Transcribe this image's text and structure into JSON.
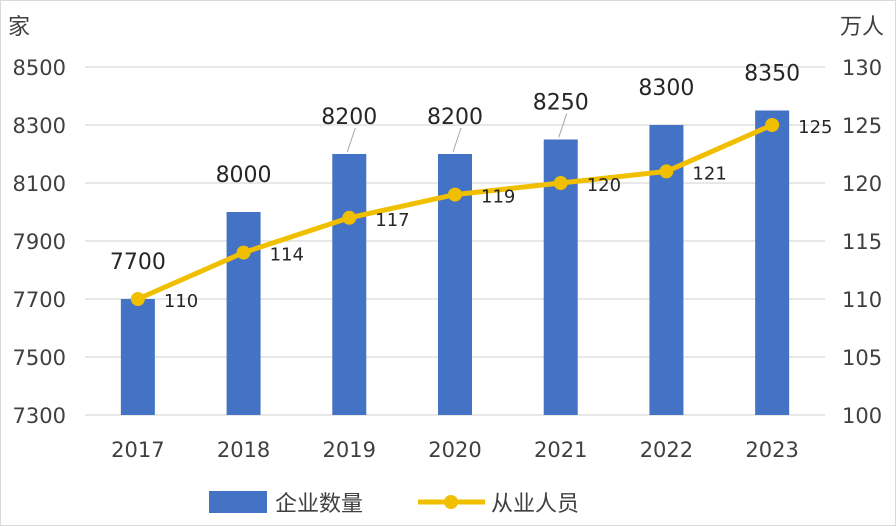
{
  "chart_data": {
    "type": "bar+line",
    "categories": [
      "2017",
      "2018",
      "2019",
      "2020",
      "2021",
      "2022",
      "2023"
    ],
    "series": [
      {
        "name": "企业数量",
        "type": "bar",
        "axis": "left",
        "values": [
          7700,
          8000,
          8200,
          8200,
          8250,
          8300,
          8350
        ],
        "labels": [
          "7700",
          "8000",
          "8200",
          "8200",
          "8250",
          "8300",
          "8350"
        ],
        "color": "#4472c4"
      },
      {
        "name": "从业人员",
        "type": "line",
        "axis": "right",
        "values": [
          110,
          114,
          117,
          119,
          120,
          121,
          125
        ],
        "labels": [
          "110",
          "114",
          "117",
          "119",
          "120",
          "121",
          "125"
        ],
        "color": "#f0c000"
      }
    ],
    "y_left": {
      "unit": "家",
      "ylim": [
        7300,
        8500
      ],
      "ticks": [
        "7300",
        "7500",
        "7700",
        "7900",
        "8100",
        "8300",
        "8500"
      ]
    },
    "y_right": {
      "unit": "万人",
      "ylim": [
        100,
        130
      ],
      "ticks": [
        "100",
        "105",
        "110",
        "115",
        "120",
        "125",
        "130"
      ]
    },
    "grid": true,
    "legend_position": "bottom"
  }
}
